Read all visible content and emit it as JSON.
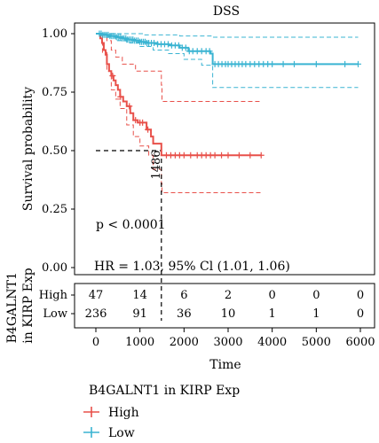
{
  "chart_data": {
    "type": "line",
    "title": "DSS",
    "xlabel": "Time",
    "ylabel": "Survival probability",
    "xlim": [
      0,
      6000
    ],
    "ylim": [
      0,
      1
    ],
    "x_ticks": [
      0,
      1000,
      2000,
      3000,
      4000,
      5000,
      6000
    ],
    "y_ticks": [
      0.0,
      0.25,
      0.5,
      0.75,
      1.0
    ],
    "y_tick_labels": [
      "0.00",
      "0.25",
      "0.50",
      "0.75",
      "1.00"
    ],
    "pvalue_text": "p < 0.0001",
    "hr_text": "HR = 1.03, 95% Cl (1.01, 1.06)",
    "median_label": "1486",
    "median_time": 1486,
    "legend": {
      "title": "B4GALNT1 in KIRP Exp",
      "placement": "bottom-left",
      "items": [
        "High",
        "Low"
      ]
    },
    "risk_table": {
      "ylabel_line1": "B4GALNT1",
      "ylabel_line2": "in KIRP Exp",
      "groups": [
        "High",
        "Low"
      ],
      "times": [
        0,
        1000,
        2000,
        3000,
        4000,
        5000,
        6000
      ],
      "counts": {
        "High": [
          47,
          14,
          6,
          2,
          0,
          0,
          0
        ],
        "Low": [
          236,
          91,
          36,
          10,
          1,
          1,
          0
        ]
      }
    },
    "series": [
      {
        "name": "High",
        "color": "#e8504a",
        "steps": [
          [
            0,
            1.0
          ],
          [
            100,
            0.98
          ],
          [
            140,
            0.96
          ],
          [
            180,
            0.93
          ],
          [
            220,
            0.91
          ],
          [
            250,
            0.87
          ],
          [
            300,
            0.84
          ],
          [
            350,
            0.82
          ],
          [
            400,
            0.8
          ],
          [
            450,
            0.78
          ],
          [
            500,
            0.76
          ],
          [
            550,
            0.73
          ],
          [
            620,
            0.71
          ],
          [
            700,
            0.69
          ],
          [
            780,
            0.66
          ],
          [
            850,
            0.63
          ],
          [
            950,
            0.62
          ],
          [
            1050,
            0.62
          ],
          [
            1150,
            0.59
          ],
          [
            1250,
            0.56
          ],
          [
            1300,
            0.53
          ],
          [
            1486,
            0.48
          ],
          [
            3750,
            0.48
          ]
        ],
        "upper": [
          [
            0,
            1.0
          ],
          [
            200,
            1.0
          ],
          [
            250,
            0.97
          ],
          [
            350,
            0.93
          ],
          [
            450,
            0.9
          ],
          [
            600,
            0.87
          ],
          [
            900,
            0.84
          ],
          [
            1486,
            0.78
          ],
          [
            1500,
            0.71
          ],
          [
            3750,
            0.71
          ]
        ],
        "lower": [
          [
            0,
            1.0
          ],
          [
            150,
            0.92
          ],
          [
            250,
            0.84
          ],
          [
            350,
            0.76
          ],
          [
            450,
            0.72
          ],
          [
            550,
            0.68
          ],
          [
            700,
            0.61
          ],
          [
            850,
            0.56
          ],
          [
            1000,
            0.52
          ],
          [
            1200,
            0.48
          ],
          [
            1300,
            0.42
          ],
          [
            1486,
            0.36
          ],
          [
            1500,
            0.32
          ],
          [
            3750,
            0.32
          ]
        ],
        "censor_x": [
          380,
          560,
          760,
          900,
          1000,
          1060,
          1180,
          1600,
          1700,
          1800,
          1900,
          2000,
          2150,
          2300,
          2400,
          2500,
          2600,
          2700,
          2850,
          3000,
          3250,
          3500,
          3750
        ]
      },
      {
        "name": "Low",
        "color": "#3ab4d2",
        "steps": [
          [
            0,
            1.0
          ],
          [
            150,
            0.995
          ],
          [
            300,
            0.99
          ],
          [
            450,
            0.985
          ],
          [
            600,
            0.98
          ],
          [
            700,
            0.975
          ],
          [
            850,
            0.97
          ],
          [
            1000,
            0.965
          ],
          [
            1150,
            0.96
          ],
          [
            1400,
            0.955
          ],
          [
            1650,
            0.95
          ],
          [
            1900,
            0.94
          ],
          [
            2100,
            0.925
          ],
          [
            2600,
            0.915
          ],
          [
            2650,
            0.87
          ],
          [
            5950,
            0.87
          ]
        ],
        "upper": [
          [
            0,
            1.0
          ],
          [
            900,
            1.0
          ],
          [
            1100,
            0.995
          ],
          [
            1900,
            0.99
          ],
          [
            2650,
            0.985
          ],
          [
            5950,
            0.985
          ]
        ],
        "lower": [
          [
            0,
            1.0
          ],
          [
            200,
            0.985
          ],
          [
            450,
            0.97
          ],
          [
            700,
            0.96
          ],
          [
            1000,
            0.945
          ],
          [
            1300,
            0.93
          ],
          [
            1650,
            0.915
          ],
          [
            2000,
            0.89
          ],
          [
            2400,
            0.865
          ],
          [
            2650,
            0.77
          ],
          [
            5950,
            0.77
          ]
        ],
        "censor_x": [
          80,
          120,
          160,
          200,
          240,
          280,
          320,
          360,
          400,
          440,
          480,
          520,
          560,
          600,
          640,
          680,
          720,
          760,
          800,
          840,
          880,
          920,
          960,
          1000,
          1040,
          1080,
          1120,
          1160,
          1200,
          1260,
          1320,
          1400,
          1480,
          1560,
          1640,
          1720,
          1800,
          1880,
          1960,
          2040,
          2120,
          2200,
          2300,
          2400,
          2500,
          2580,
          2700,
          2780,
          2860,
          2940,
          3000,
          3080,
          3160,
          3240,
          3320,
          3400,
          3500,
          3600,
          3700,
          3800,
          3900,
          4000,
          4250,
          4500,
          5000,
          5650,
          5950
        ]
      }
    ]
  }
}
